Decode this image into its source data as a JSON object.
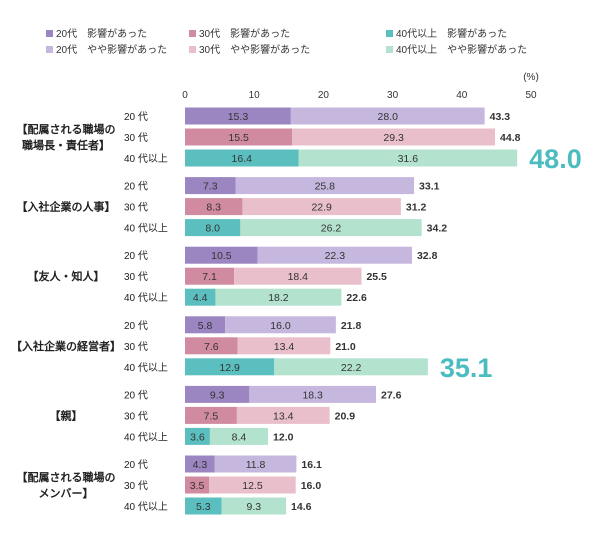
{
  "chart_data": {
    "type": "bar",
    "orientation": "horizontal",
    "stacked": true,
    "unit_label": "(%)",
    "xlim": [
      0,
      50
    ],
    "x_ticks": [
      "0",
      "10",
      "20",
      "30",
      "40",
      "50"
    ],
    "grid": false,
    "legend_placement": "top",
    "legend": [
      {
        "label": "20代　影響があった",
        "color": "#9b86c2"
      },
      {
        "label": "30代　影響があった",
        "color": "#d08ba0"
      },
      {
        "label": "40代以上　影響があった",
        "color": "#5bbfbf"
      },
      {
        "label": "20代　やや影響があった",
        "color": "#c6b7de"
      },
      {
        "label": "30代　やや影響があった",
        "color": "#e8bfcb"
      },
      {
        "label": "40代以上　やや影響があった",
        "color": "#b3e3cf"
      }
    ],
    "age_labels": [
      "20 代",
      "30 代",
      "40 代以上"
    ],
    "highlight_color": "#4bbcc0",
    "groups": [
      {
        "label_lines": [
          "【配属される職場の",
          "職場長・責任者】"
        ],
        "rows": [
          {
            "affected": 15.3,
            "somewhat": 28.0,
            "total": "43.3"
          },
          {
            "affected": 15.5,
            "somewhat": 29.3,
            "total": "44.8"
          },
          {
            "affected": 16.4,
            "somewhat": 31.6,
            "total": "48.0",
            "highlight": true
          }
        ]
      },
      {
        "label_lines": [
          "【入社企業の人事】"
        ],
        "rows": [
          {
            "affected": 7.3,
            "somewhat": 25.8,
            "total": "33.1"
          },
          {
            "affected": 8.3,
            "somewhat": 22.9,
            "total": "31.2"
          },
          {
            "affected": 8.0,
            "somewhat": 26.2,
            "total": "34.2"
          }
        ]
      },
      {
        "label_lines": [
          "【友人・知人】"
        ],
        "rows": [
          {
            "affected": 10.5,
            "somewhat": 22.3,
            "total": "32.8"
          },
          {
            "affected": 7.1,
            "somewhat": 18.4,
            "total": "25.5"
          },
          {
            "affected": 4.4,
            "somewhat": 18.2,
            "total": "22.6"
          }
        ]
      },
      {
        "label_lines": [
          "【入社企業の経営者】"
        ],
        "rows": [
          {
            "affected": 5.8,
            "somewhat": 16.0,
            "total": "21.8"
          },
          {
            "affected": 7.6,
            "somewhat": 13.4,
            "total": "21.0"
          },
          {
            "affected": 12.9,
            "somewhat": 22.2,
            "total": "35.1",
            "highlight": true
          }
        ]
      },
      {
        "label_lines": [
          "【親】"
        ],
        "rows": [
          {
            "affected": 9.3,
            "somewhat": 18.3,
            "total": "27.6"
          },
          {
            "affected": 7.5,
            "somewhat": 13.4,
            "total": "20.9"
          },
          {
            "affected": 3.6,
            "somewhat": 8.4,
            "total": "12.0"
          }
        ]
      },
      {
        "label_lines": [
          "【配属される職場の",
          "メンバー】"
        ],
        "rows": [
          {
            "affected": 4.3,
            "somewhat": 11.8,
            "total": "16.1"
          },
          {
            "affected": 3.5,
            "somewhat": 12.5,
            "total": "16.0"
          },
          {
            "affected": 5.3,
            "somewhat": 9.3,
            "total": "14.6"
          }
        ]
      }
    ]
  }
}
